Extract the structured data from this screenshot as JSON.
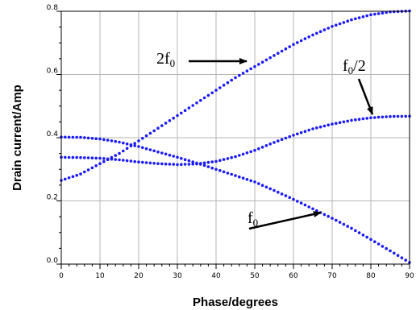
{
  "chart_data": {
    "type": "scatter",
    "xlabel": "Phase/degrees",
    "ylabel": "Drain current/Amp",
    "xlim": [
      0,
      90
    ],
    "ylim": [
      0.0,
      0.8
    ],
    "xticks": [
      0,
      10,
      20,
      30,
      40,
      50,
      60,
      70,
      80,
      90
    ],
    "yticks": [
      0.0,
      0.2,
      0.4,
      0.6,
      0.8
    ],
    "xtick_labels": [
      "0",
      "10",
      "20",
      "30",
      "40",
      "50",
      "60",
      "70",
      "80",
      "90"
    ],
    "ytick_labels": [
      "0.0",
      "0.2",
      "0.4",
      "0.6",
      "0.8"
    ],
    "grid": true,
    "marker_color": "#1a1aff",
    "series": [
      {
        "annotation": {
          "base": "f",
          "sub": "0",
          "suffix": ""
        },
        "x": [
          0,
          5,
          10,
          15,
          20,
          25,
          30,
          35,
          40,
          45,
          50,
          55,
          60,
          65,
          70,
          75,
          80,
          85,
          90
        ],
        "y": [
          0.402,
          0.401,
          0.396,
          0.386,
          0.372,
          0.355,
          0.338,
          0.32,
          0.3,
          0.28,
          0.26,
          0.233,
          0.205,
          0.175,
          0.145,
          0.113,
          0.078,
          0.042,
          0.005
        ]
      },
      {
        "annotation": {
          "base": "2f",
          "sub": "0",
          "suffix": ""
        },
        "x": [
          0,
          5,
          10,
          15,
          20,
          25,
          30,
          35,
          40,
          45,
          50,
          55,
          60,
          65,
          70,
          75,
          80,
          85,
          90
        ],
        "y": [
          0.265,
          0.285,
          0.318,
          0.35,
          0.39,
          0.43,
          0.47,
          0.51,
          0.55,
          0.59,
          0.625,
          0.66,
          0.695,
          0.725,
          0.752,
          0.773,
          0.789,
          0.798,
          0.801
        ]
      },
      {
        "annotation": {
          "base": "f",
          "sub": "0",
          "suffix": "/2"
        },
        "x": [
          0,
          5,
          10,
          15,
          20,
          25,
          30,
          35,
          40,
          45,
          50,
          55,
          60,
          65,
          70,
          75,
          80,
          85,
          90
        ],
        "y": [
          0.338,
          0.337,
          0.335,
          0.33,
          0.323,
          0.318,
          0.315,
          0.317,
          0.325,
          0.34,
          0.36,
          0.385,
          0.408,
          0.428,
          0.443,
          0.455,
          0.463,
          0.467,
          0.468
        ]
      }
    ]
  }
}
